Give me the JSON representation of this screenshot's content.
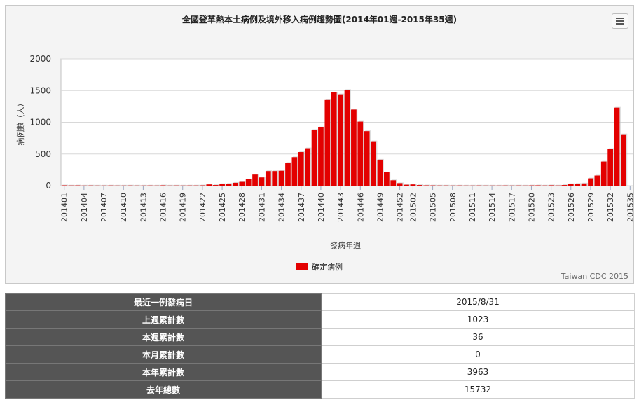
{
  "chart_data": {
    "type": "bar",
    "title": "全國登革熱本土病例及境外移入病例趨勢圖(2014年01週-2015年35週)",
    "xlabel": "發病年週",
    "ylabel": "病例數（人）",
    "ylim": [
      0,
      2000
    ],
    "yticks": [
      0,
      500,
      1000,
      1500,
      2000
    ],
    "grid": true,
    "legend_position": "bottom-center",
    "credit": "Taiwan CDC 2015",
    "bar_color": "#e30000",
    "categories": [
      "201401",
      "201402",
      "201403",
      "201404",
      "201405",
      "201406",
      "201407",
      "201408",
      "201409",
      "201410",
      "201411",
      "201412",
      "201413",
      "201414",
      "201415",
      "201416",
      "201417",
      "201418",
      "201419",
      "201420",
      "201421",
      "201422",
      "201423",
      "201424",
      "201425",
      "201426",
      "201427",
      "201428",
      "201429",
      "201430",
      "201431",
      "201432",
      "201433",
      "201434",
      "201435",
      "201436",
      "201437",
      "201438",
      "201439",
      "201440",
      "201441",
      "201442",
      "201443",
      "201444",
      "201445",
      "201446",
      "201447",
      "201448",
      "201449",
      "201450",
      "201451",
      "201452",
      "201501",
      "201502",
      "201503",
      "201504",
      "201505",
      "201506",
      "201507",
      "201508",
      "201509",
      "201510",
      "201511",
      "201512",
      "201513",
      "201514",
      "201515",
      "201516",
      "201517",
      "201518",
      "201519",
      "201520",
      "201521",
      "201522",
      "201523",
      "201524",
      "201525",
      "201526",
      "201527",
      "201528",
      "201529",
      "201530",
      "201531",
      "201532",
      "201533",
      "201534",
      "201535"
    ],
    "tick_labels": [
      "201401",
      "201404",
      "201407",
      "201410",
      "201413",
      "201416",
      "201419",
      "201422",
      "201425",
      "201428",
      "201431",
      "201434",
      "201437",
      "201440",
      "201443",
      "201446",
      "201449",
      "201452",
      "201502",
      "201505",
      "201508",
      "201511",
      "201514",
      "201517",
      "201520",
      "201523",
      "201526",
      "201529",
      "201532",
      "201535"
    ],
    "series": [
      {
        "name": "確定病例",
        "values": [
          5,
          3,
          4,
          2,
          3,
          2,
          2,
          3,
          2,
          2,
          3,
          2,
          2,
          3,
          2,
          5,
          2,
          3,
          2,
          3,
          3,
          5,
          20,
          10,
          25,
          30,
          45,
          60,
          100,
          175,
          130,
          230,
          230,
          235,
          360,
          450,
          530,
          590,
          880,
          920,
          1350,
          1470,
          1440,
          1510,
          1200,
          1010,
          860,
          700,
          410,
          210,
          85,
          40,
          15,
          20,
          10,
          5,
          4,
          3,
          3,
          2,
          3,
          2,
          2,
          3,
          2,
          2,
          2,
          3,
          2,
          3,
          2,
          4,
          5,
          3,
          6,
          3,
          10,
          25,
          30,
          35,
          115,
          160,
          380,
          580,
          1230,
          810,
          0
        ]
      }
    ]
  },
  "stats": [
    {
      "label": "最近一例發病日",
      "value": "2015/8/31"
    },
    {
      "label": "上週累計數",
      "value": "1023"
    },
    {
      "label": "本週累計數",
      "value": "36"
    },
    {
      "label": "本月累計數",
      "value": "0"
    },
    {
      "label": "本年累計數",
      "value": "3963"
    },
    {
      "label": "去年總數",
      "value": "15732"
    }
  ]
}
